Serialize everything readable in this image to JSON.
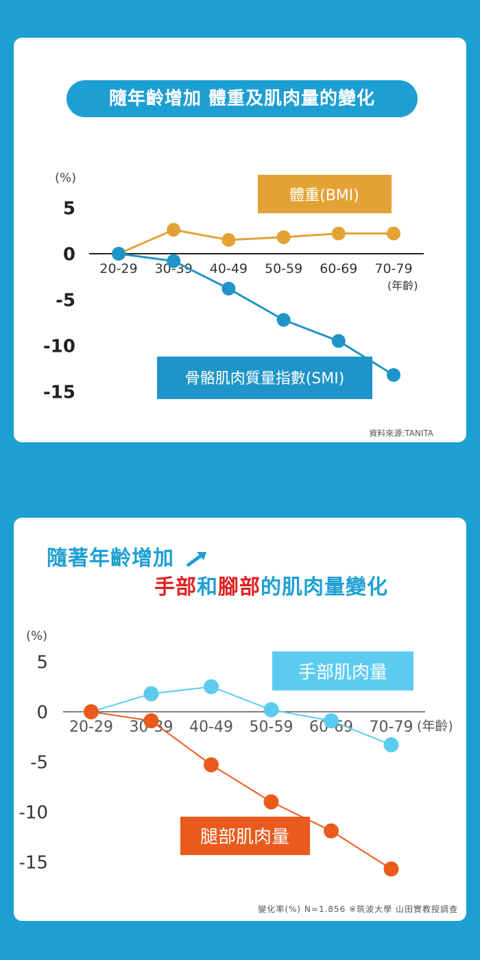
{
  "chart1": {
    "title": "隨年齡增加 體重及肌肉量的變化",
    "unit_label": "(%)",
    "x_suffix": "(年齡)",
    "source": "資料來源:TANITA",
    "chart_data": {
      "type": "line",
      "categories": [
        "20-29",
        "30-39",
        "40-49",
        "50-59",
        "60-69",
        "70-79"
      ],
      "y_ticks": [
        "5",
        "0",
        "-5",
        "-10",
        "-15"
      ],
      "ylim": [
        -15,
        5
      ],
      "series": [
        {
          "name": "體重(BMI)",
          "values": [
            0,
            2.6,
            1.5,
            1.8,
            2.2,
            2.2
          ],
          "color": "#e3a236"
        },
        {
          "name": "骨骼肌肉質量指數(SMI)",
          "values": [
            0,
            -0.8,
            -3.8,
            -7.2,
            -9.5,
            -13.2
          ],
          "color": "#1f94c8"
        }
      ]
    }
  },
  "chart2": {
    "title_line1": "隨著年齡增加",
    "title_line2_parts": [
      "手部",
      "和",
      "腳部",
      "的肌肉量變化"
    ],
    "unit_label": "(%)",
    "x_suffix": "(年齡)",
    "note": "變化率(%) N=1.856 ※筑波大學 山田實教授調查",
    "chart_data": {
      "type": "line",
      "categories": [
        "20-29",
        "30-39",
        "40-49",
        "50-59",
        "60-69",
        "70-79"
      ],
      "y_ticks": [
        "5",
        "0",
        "-5",
        "-10",
        "-15"
      ],
      "ylim": [
        -15,
        5
      ],
      "series": [
        {
          "name": "手部肌肉量",
          "values": [
            0,
            1.8,
            2.5,
            0.2,
            -0.9,
            -3.3
          ],
          "color": "#5ccbf0"
        },
        {
          "name": "腿部肌肉量",
          "values": [
            0,
            -0.9,
            -5.3,
            -9.0,
            -11.9,
            -15.7
          ],
          "color": "#ea5a1c"
        }
      ]
    }
  }
}
